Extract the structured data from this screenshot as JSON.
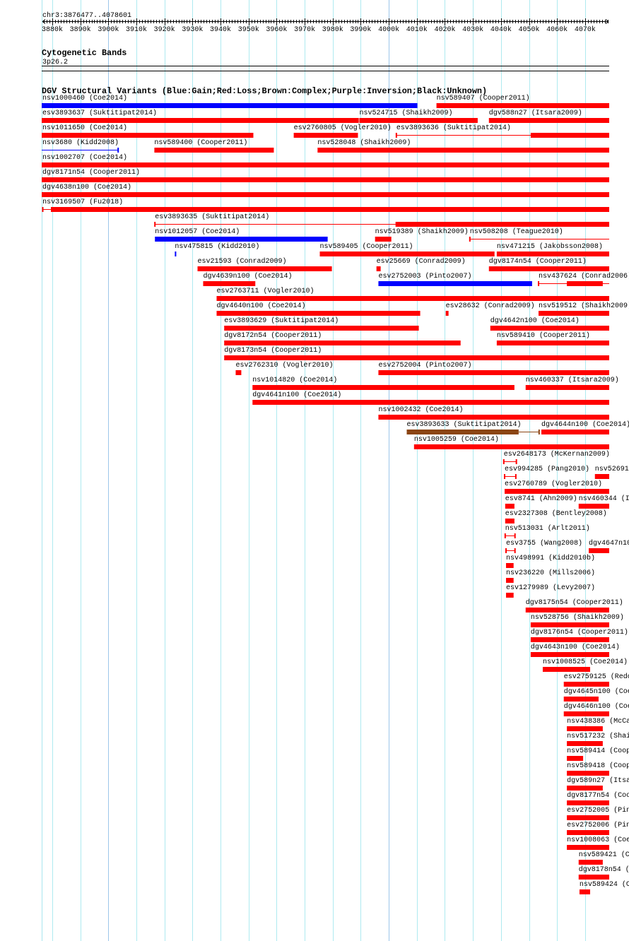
{
  "ruler": {
    "range_label": "chr3:3876477..4078601",
    "view_start": 3876.477,
    "view_end": 4078.601,
    "tick_labels": [
      "3880k",
      "3890k",
      "3900k",
      "3910k",
      "3920k",
      "3930k",
      "3940k",
      "3950k",
      "3960k",
      "3970k",
      "3980k",
      "3990k",
      "4000k",
      "4010k",
      "4020k",
      "4030k",
      "4040k",
      "4050k",
      "4060k",
      "4070k"
    ],
    "tick_values_kb": [
      3880,
      3890,
      3900,
      3910,
      3920,
      3930,
      3940,
      3950,
      3960,
      3970,
      3980,
      3990,
      4000,
      4010,
      4020,
      4030,
      4040,
      4050,
      4060,
      4070
    ]
  },
  "cyto_track": {
    "title": "Cytogenetic Bands",
    "band": "3p26.2"
  },
  "dgv_track": {
    "title": "DGV Structural Variants (Blue:Gain;Red:Loss;Brown:Complex;Purple:Inversion;Black:Unknown)",
    "colors": {
      "red": "#ff0000",
      "blue": "#0000ff",
      "brown": "#8b4513"
    },
    "rows": [
      [
        {
          "label": "nsv1000460 (Coe2014)",
          "c": "blue",
          "blocks": [
            [
              3870,
              4010.2
            ]
          ]
        },
        {
          "label": "nsv589407 (Cooper2011)",
          "c": "red",
          "blocks": [
            [
              4017.0,
              4085
            ]
          ]
        }
      ],
      [
        {
          "label": "esv3893637 (Suktitipat2014)",
          "c": "red",
          "blocks": [
            [
              3870,
              3989.3
            ]
          ]
        },
        {
          "label": "nsv524715 (Shaikh2009)",
          "c": "red",
          "blocks": [
            [
              3989.5,
              4031.7
            ]
          ]
        },
        {
          "label": "dgv588n27 (Itsara2009)",
          "c": "red",
          "blocks": [
            [
              4035.7,
              4085
            ]
          ]
        }
      ],
      [
        {
          "label": "nsv1011650 (Coe2014)",
          "c": "red",
          "blocks": [
            [
              3870,
              3951.7
            ]
          ]
        },
        {
          "label": "esv2760805 (Vogler2010)",
          "c": "red",
          "blocks": [
            [
              3966.1,
              3989.0
            ]
          ]
        },
        {
          "label": "esv3893636 (Suktitipat2014)",
          "c": "red",
          "line": [
            4002.7,
            4085
          ],
          "ticks": [
            4002.7
          ],
          "blocks": [
            [
              4050.6,
              4085
            ]
          ]
        }
      ],
      [
        {
          "label": "nsv3680 (Kidd2008)",
          "c": "blue",
          "line": [
            3870,
            3903.6
          ],
          "ticks": [
            3903.5
          ]
        },
        {
          "label": "nsv589400 (Cooper2011)",
          "c": "red",
          "blocks": [
            [
              3916.4,
              3959.0
            ]
          ]
        },
        {
          "label": "nsv528048 (Shaikh2009)",
          "c": "red",
          "blocks": [
            [
              3974.6,
              4085
            ]
          ]
        }
      ],
      [
        {
          "label": "nsv1002707 (Coe2014)",
          "c": "red",
          "blocks": [
            [
              3870,
              4085
            ]
          ]
        }
      ],
      [
        {
          "label": "dgv8171n54 (Cooper2011)",
          "c": "red",
          "blocks": [
            [
              3870,
              4085
            ]
          ]
        }
      ],
      [
        {
          "label": "dgv4638n100 (Coe2014)",
          "c": "red",
          "blocks": [
            [
              3870,
              4085
            ]
          ]
        }
      ],
      [
        {
          "label": "nsv3169507 (Fu2018)",
          "c": "red",
          "line": [
            3876.5,
            3879.5
          ],
          "ticks": [
            3876.6
          ],
          "blocks": [
            [
              3879.5,
              4085
            ]
          ]
        }
      ],
      [
        {
          "label": "esv3893635 (Suktitipat2014)",
          "c": "red",
          "line": [
            3916.6,
            4085
          ],
          "ticks": [
            3916.6
          ],
          "blocks": [
            [
              4002.4,
              4085
            ]
          ]
        }
      ],
      [
        {
          "label": "nsv1012057 (Coe2014)",
          "c": "blue",
          "blocks": [
            [
              3916.6,
              3978.2
            ]
          ]
        },
        {
          "label": "nsv519389 (Shaikh2009)",
          "c": "red",
          "blocks": [
            [
              3995.1,
              4000.9
            ]
          ]
        },
        {
          "label": "nsv508208 (Teague2010)",
          "c": "red",
          "line": [
            4028.9,
            4085
          ],
          "ticks": [
            4028.9
          ]
        }
      ],
      [
        {
          "label": "nsv475815 (Kidd2010)",
          "c": "blue",
          "blocks": [
            [
              3923.7,
              3924.2
            ]
          ]
        },
        {
          "label": "nsv589405 (Cooper2011)",
          "c": "red",
          "blocks": [
            [
              3975.4,
              4037.7
            ]
          ]
        },
        {
          "label": "nsv471215 (Jakobsson2008)",
          "c": "red",
          "blocks": [
            [
              4038.5,
              4085
            ]
          ]
        }
      ],
      [
        {
          "label": "esv21593 (Conrad2009)",
          "c": "red",
          "blocks": [
            [
              3931.8,
              3979.7
            ]
          ]
        },
        {
          "label": "esv25669 (Conrad2009)",
          "c": "red",
          "blocks": [
            [
              3995.6,
              3997.1
            ]
          ]
        },
        {
          "label": "dgv8174n54 (Cooper2011)",
          "c": "red",
          "blocks": [
            [
              4035.7,
              4085
            ]
          ]
        }
      ],
      [
        {
          "label": "dgv4639n100 (Coe2014)",
          "c": "red",
          "blocks": [
            [
              3933.8,
              3952.4
            ]
          ]
        },
        {
          "label": "esv2752003 (Pinto2007)",
          "c": "blue",
          "blocks": [
            [
              3996.3,
              4051.1
            ]
          ]
        },
        {
          "label": "nsv437624 (Conrad2006)",
          "c": "red",
          "line": [
            4053.4,
            4085
          ],
          "ticks": [
            4053.4
          ],
          "blocks": [
            [
              4063.5,
              4076.3
            ]
          ]
        }
      ],
      [
        {
          "label": "esv2763711 (Vogler2010)",
          "c": "red",
          "blocks": [
            [
              3938.6,
              4085
            ]
          ]
        }
      ],
      [
        {
          "label": "dgv4640n100 (Coe2014)",
          "c": "red",
          "blocks": [
            [
              3938.6,
              4011.2
            ]
          ]
        },
        {
          "label": "esv28632 (Conrad2009)",
          "c": "red",
          "blocks": [
            [
              4020.3,
              4021.3
            ]
          ]
        },
        {
          "label": "nsv519512 (Shaikh2009)",
          "c": "red",
          "blocks": [
            [
              4053.4,
              4085
            ]
          ]
        }
      ],
      [
        {
          "label": "esv3893629 (Suktitipat2014)",
          "c": "red",
          "blocks": [
            [
              3941.3,
              4010.7
            ]
          ]
        },
        {
          "label": "dgv4642n100 (Coe2014)",
          "c": "red",
          "blocks": [
            [
              4036.2,
              4085
            ]
          ]
        }
      ],
      [
        {
          "label": "dgv8172n54 (Cooper2011)",
          "c": "red",
          "blocks": [
            [
              3941.3,
              4025.6
            ]
          ]
        },
        {
          "label": "nsv589410 (Cooper2011)",
          "c": "red",
          "blocks": [
            [
              4038.5,
              4085
            ]
          ]
        }
      ],
      [
        {
          "label": "dgv8173n54 (Cooper2011)",
          "c": "red",
          "blocks": [
            [
              3941.3,
              4085
            ]
          ]
        }
      ],
      [
        {
          "label": "esv2762310 (Vogler2010)",
          "c": "red",
          "blocks": [
            [
              3945.4,
              3947.4
            ]
          ]
        },
        {
          "label": "esv2752004 (Pinto2007)",
          "c": "red",
          "blocks": [
            [
              3996.3,
              4085
            ]
          ]
        }
      ],
      [
        {
          "label": "nsv1014820 (Coe2014)",
          "c": "red",
          "blocks": [
            [
              3951.4,
              4044.8
            ]
          ]
        },
        {
          "label": "nsv460337 (Itsara2009)",
          "c": "red",
          "blocks": [
            [
              4048.8,
              4085
            ]
          ]
        }
      ],
      [
        {
          "label": "dgv4641n100 (Coe2014)",
          "c": "red",
          "blocks": [
            [
              3951.4,
              4085
            ]
          ]
        }
      ],
      [
        {
          "label": "nsv1002432 (Coe2014)",
          "c": "red",
          "blocks": [
            [
              3996.3,
              4085
            ]
          ]
        }
      ],
      [
        {
          "label": "esv3893633 (Suktitipat2014)",
          "c": "brown",
          "blocks": [
            [
              4006.4,
              4046.3
            ]
          ],
          "line": [
            4046.3,
            4053.6
          ],
          "ticks": [
            4053.6
          ]
        },
        {
          "label": "dgv4644n100 (Coe2014)",
          "c": "red",
          "blocks": [
            [
              4054.4,
              4085
            ]
          ]
        }
      ],
      [
        {
          "label": "nsv1005259 (Coe2014)",
          "c": "red",
          "blocks": [
            [
              4009.0,
              4085
            ]
          ]
        }
      ],
      [
        {
          "label": "esv2648173 (McKernan2009)",
          "c": "red",
          "line": [
            4041.0,
            4045.5
          ],
          "ticks": [
            4041.0,
            4045.5
          ]
        }
      ],
      [
        {
          "label": "esv994285 (Pang2010)",
          "c": "red",
          "line": [
            4041.3,
            4045.3
          ],
          "ticks": [
            4041.3,
            4045.3
          ]
        },
        {
          "label": "nsv526910",
          "c": "red",
          "blocks": [
            [
              4073.5,
              4085
            ]
          ]
        }
      ],
      [
        {
          "label": "esv2760789 (Vogler2010)",
          "c": "red",
          "blocks": [
            [
              4041.3,
              4085
            ]
          ]
        }
      ],
      [
        {
          "label": "esv8741 (Ahn2009)",
          "c": "red",
          "blocks": [
            [
              4041.5,
              4044.8
            ]
          ]
        },
        {
          "label": "nsv460344 (I",
          "c": "red",
          "blocks": [
            [
              4067.7,
              4085
            ]
          ]
        }
      ],
      [
        {
          "label": "esv2327308 (Bentley2008)",
          "c": "red",
          "blocks": [
            [
              4041.5,
              4044.8
            ]
          ]
        }
      ],
      [
        {
          "label": "nsv513031 (Arlt2011)",
          "c": "red",
          "line": [
            4041.5,
            4045.0
          ],
          "ticks": [
            4041.5,
            4045.0
          ]
        }
      ],
      [
        {
          "label": "esv3755 (Wang2008)",
          "c": "red",
          "line": [
            4041.8,
            4045.0
          ],
          "ticks": [
            4041.8,
            4045.0
          ]
        },
        {
          "label": "dgv4647n10",
          "c": "red",
          "blocks": [
            [
              4071.3,
              4085
            ]
          ]
        }
      ],
      [
        {
          "label": "nsv498991 (Kidd2010b)",
          "c": "red",
          "blocks": [
            [
              4041.8,
              4044.5
            ]
          ]
        }
      ],
      [
        {
          "label": "nsv236220 (Mills2006)",
          "c": "red",
          "blocks": [
            [
              4041.8,
              4044.5
            ]
          ]
        }
      ],
      [
        {
          "label": "esv1279989 (Levy2007)",
          "c": "red",
          "blocks": [
            [
              4041.8,
              4044.5
            ]
          ]
        }
      ],
      [
        {
          "label": "dgv8175n54 (Cooper2011)",
          "c": "red",
          "blocks": [
            [
              4048.8,
              4085
            ]
          ]
        }
      ],
      [
        {
          "label": "nsv528756 (Shaikh2009)",
          "c": "red",
          "blocks": [
            [
              4050.6,
              4085
            ]
          ]
        }
      ],
      [
        {
          "label": "dgv8176n54 (Cooper2011)",
          "c": "red",
          "blocks": [
            [
              4050.6,
              4085
            ]
          ]
        }
      ],
      [
        {
          "label": "dgv4643n100 (Coe2014)",
          "c": "red",
          "blocks": [
            [
              4050.6,
              4085
            ]
          ]
        }
      ],
      [
        {
          "label": "nsv1008525 (Coe2014)",
          "c": "red",
          "blocks": [
            [
              4054.9,
              4071.8
            ]
          ]
        }
      ],
      [
        {
          "label": "esv2759125 (Redo",
          "c": "red",
          "blocks": [
            [
              4062.4,
              4085
            ]
          ]
        }
      ],
      [
        {
          "label": "dgv4645n100 (Coe",
          "c": "red",
          "blocks": [
            [
              4062.4,
              4074.8
            ]
          ]
        }
      ],
      [
        {
          "label": "dgv4646n100 (Coe",
          "c": "red",
          "blocks": [
            [
              4062.4,
              4085
            ]
          ]
        }
      ],
      [
        {
          "label": "nsv438386 (McCa",
          "c": "red",
          "blocks": [
            [
              4063.5,
              4076.3
            ]
          ]
        }
      ],
      [
        {
          "label": "nsv517232 (Shai",
          "c": "red",
          "blocks": [
            [
              4063.5,
              4076.3
            ]
          ]
        }
      ],
      [
        {
          "label": "nsv589414 (Coop",
          "c": "red",
          "blocks": [
            [
              4063.5,
              4069.3
            ]
          ]
        }
      ],
      [
        {
          "label": "nsv589418 (Coop",
          "c": "red",
          "blocks": [
            [
              4063.5,
              4085
            ]
          ]
        }
      ],
      [
        {
          "label": "dgv589n27 (Itsa",
          "c": "red",
          "blocks": [
            [
              4063.5,
              4076.3
            ]
          ]
        }
      ],
      [
        {
          "label": "dgv8177n54 (Coo",
          "c": "red",
          "blocks": [
            [
              4063.5,
              4085
            ]
          ]
        }
      ],
      [
        {
          "label": "esv2752005 (Pin",
          "c": "red",
          "blocks": [
            [
              4063.5,
              4085
            ]
          ]
        }
      ],
      [
        {
          "label": "esv2752006 (Pin",
          "c": "red",
          "blocks": [
            [
              4063.5,
              4085
            ]
          ]
        }
      ],
      [
        {
          "label": "nsv1008063 (Coe",
          "c": "red",
          "blocks": [
            [
              4063.5,
              4085
            ]
          ]
        }
      ],
      [
        {
          "label": "nsv589421 (C",
          "c": "red",
          "blocks": [
            [
              4067.7,
              4076.3
            ]
          ]
        }
      ],
      [
        {
          "label": "dgv8178n54 (",
          "c": "red",
          "blocks": [
            [
              4067.7,
              4085
            ]
          ]
        }
      ],
      [
        {
          "label": "nsv589424 (C",
          "c": "red",
          "blocks": [
            [
              4068.0,
              4071.8
            ]
          ]
        }
      ]
    ]
  }
}
